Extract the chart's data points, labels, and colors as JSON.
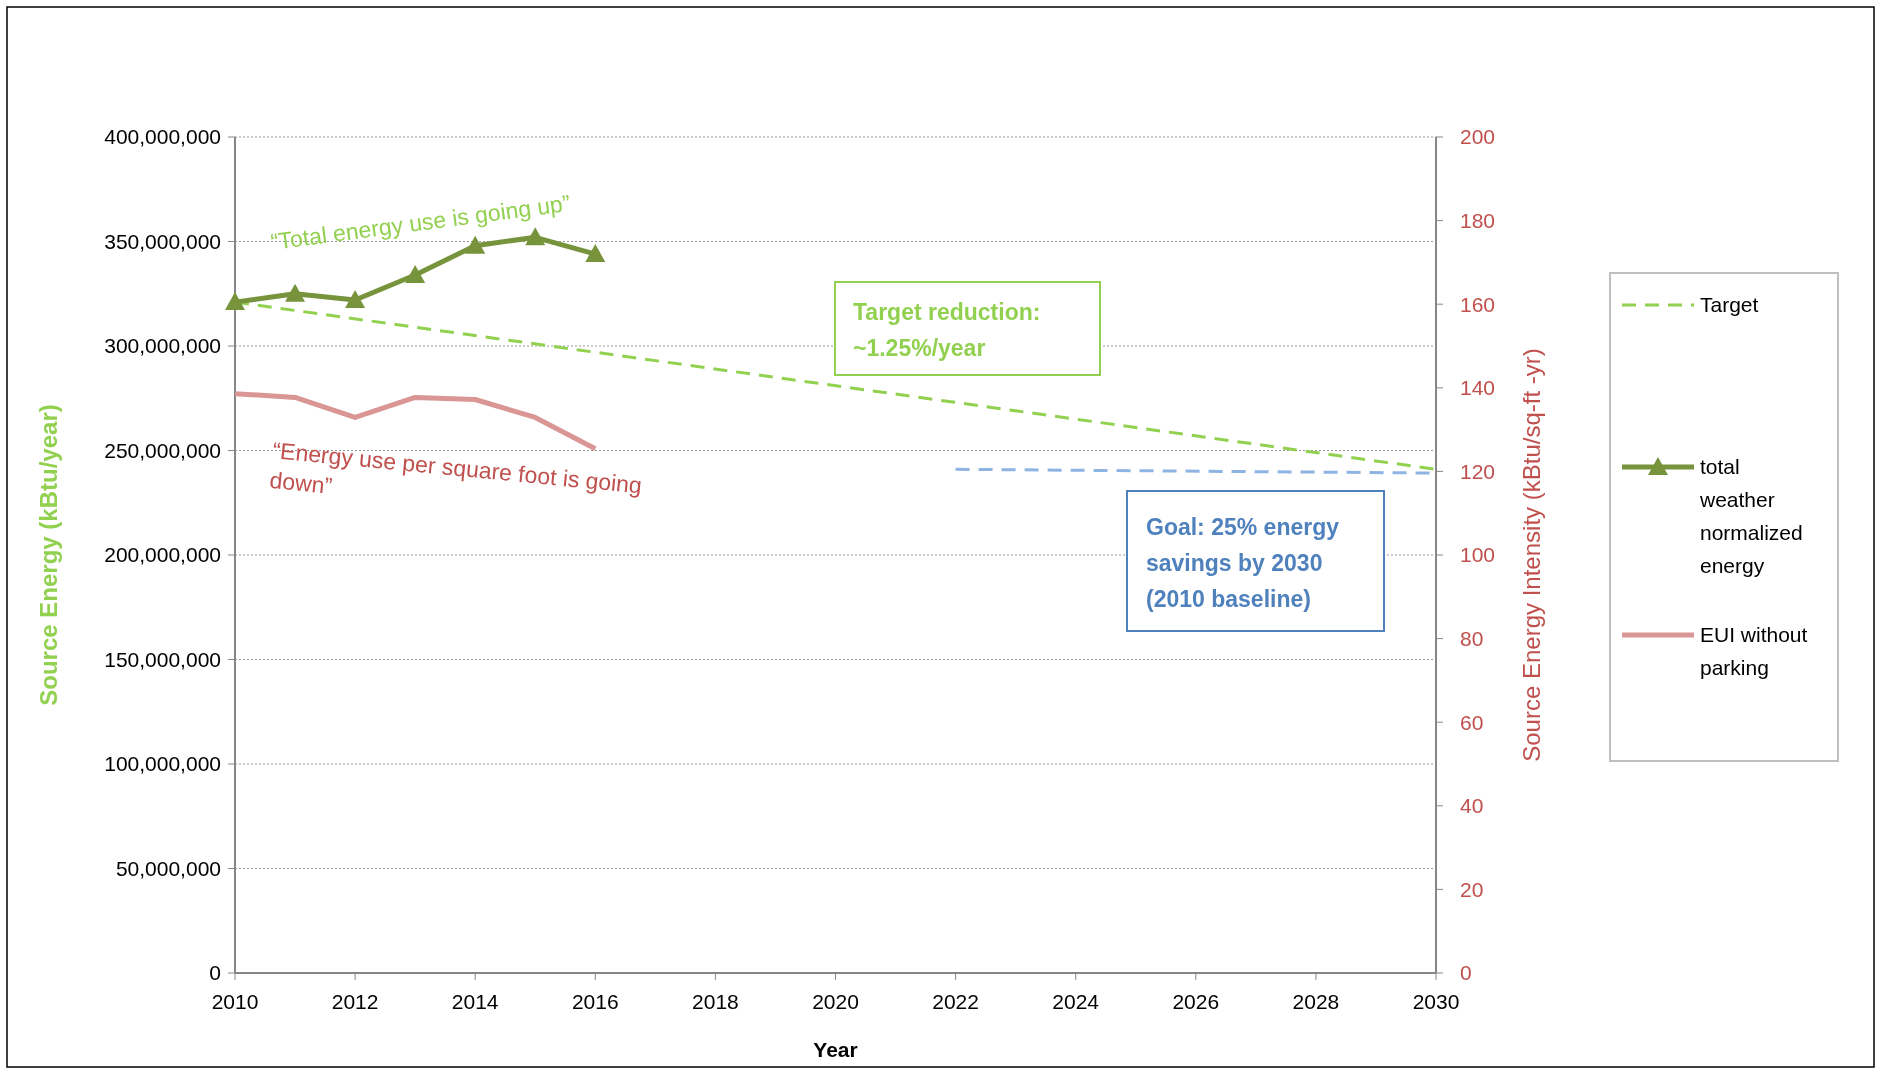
{
  "chart_data": {
    "type": "line",
    "xlabel": "Year",
    "ylabel": "Source Energy (kBtu/year)",
    "y2label": "Source Energy Intensity (kBtu/sq-ft -yr)",
    "xlim": [
      2010,
      2030
    ],
    "xticks": [
      2010,
      2012,
      2014,
      2016,
      2018,
      2020,
      2022,
      2024,
      2026,
      2028,
      2030
    ],
    "ylim": [
      0,
      400000000
    ],
    "yticks": [
      {
        "value": 0,
        "label": "0"
      },
      {
        "value": 50000000,
        "label": "50,000,000"
      },
      {
        "value": 100000000,
        "label": "100,000,000"
      },
      {
        "value": 150000000,
        "label": "150,000,000"
      },
      {
        "value": 200000000,
        "label": "200,000,000"
      },
      {
        "value": 250000000,
        "label": "250,000,000"
      },
      {
        "value": 300000000,
        "label": "300,000,000"
      },
      {
        "value": 350000000,
        "label": "350,000,000"
      },
      {
        "value": 400000000,
        "label": "400,000,000"
      }
    ],
    "y2lim": [
      0,
      200
    ],
    "y2ticks": [
      0,
      20,
      40,
      60,
      80,
      100,
      120,
      140,
      160,
      180,
      200
    ],
    "grid": "y",
    "legend": "right",
    "series": [
      {
        "name": "Target",
        "color": "#92d050",
        "x": [
          2010,
          2030
        ],
        "values": [
          321000000,
          241000000
        ],
        "line_style": "dashed",
        "marker": "none"
      },
      {
        "name": "total weather normalized energy",
        "color": "#77933c",
        "x": [
          2010,
          2011,
          2012,
          2013,
          2014,
          2015,
          2016
        ],
        "values": [
          321000000,
          325000000,
          322000000,
          334000000,
          348000000,
          352000000,
          344000000
        ],
        "line_style": "solid",
        "marker": "triangle"
      },
      {
        "name": "EUI without parking",
        "color": "#d99694",
        "axis": "y2",
        "x": [
          2010,
          2011,
          2012,
          2013,
          2014,
          2015,
          2016
        ],
        "values": [
          138.6,
          137.7,
          132.9,
          137.7,
          137.2,
          132.9,
          125.4
        ],
        "line_style": "solid",
        "marker": "none"
      },
      {
        "color": "#8eb4e3",
        "axis": "y2",
        "x": [
          2022,
          2030
        ],
        "values": [
          120.5,
          119.6
        ],
        "line_style": "dashed",
        "marker": "none"
      }
    ],
    "annotations": [
      "“Total energy use is going up”",
      "“Energy use per square foot is going down”",
      "Target reduction: ~1.25%/year",
      "Goal: 25% energy savings by 2030 (2010 baseline)"
    ]
  }
}
